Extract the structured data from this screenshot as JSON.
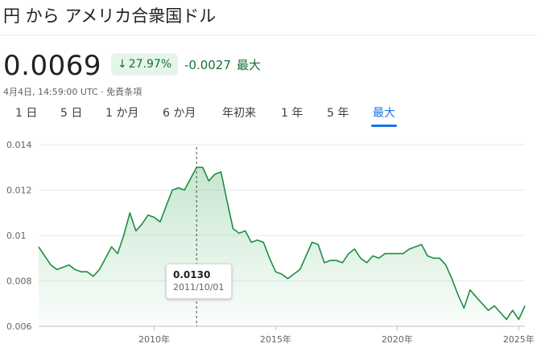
{
  "header": {
    "title": "円 から アメリカ合衆国ドル",
    "price": "0.0069",
    "change_percent": "27.97%",
    "change_arrow_icon": "arrow-down-icon",
    "change_value": "-0.0027",
    "change_period": "最大",
    "timestamp": "4月4日, 14:59:00 UTC · 免責条項"
  },
  "tabs": [
    {
      "label": "1 日"
    },
    {
      "label": "5 日"
    },
    {
      "label": "1 か月"
    },
    {
      "label": "6 か月"
    },
    {
      "label": "年初来"
    },
    {
      "label": "1 年"
    },
    {
      "label": "5 年"
    },
    {
      "label": "最大"
    }
  ],
  "active_tab": "最大",
  "colors": {
    "line": "#1e8e3e",
    "fill_top": "#34a853",
    "accent": "#1a73e8",
    "positive": "#137333"
  },
  "tooltip": {
    "value": "0.0130",
    "date": "2011/10/01"
  },
  "chart_data": {
    "type": "area",
    "title": "",
    "xlabel": "",
    "ylabel": "",
    "ylim": [
      0.006,
      0.014
    ],
    "xlim": [
      "2005-04-01",
      "2025-04-04"
    ],
    "y_ticks": [
      "0.014",
      "0.012",
      "0.01",
      "0.008",
      "0.006"
    ],
    "x_ticks": [
      {
        "value": "2010-01-01",
        "label": "2010年"
      },
      {
        "value": "2015-01-01",
        "label": "2015年"
      },
      {
        "value": "2020-01-01",
        "label": "2020年"
      },
      {
        "value": "2025-01-01",
        "label": "2025年"
      }
    ],
    "grid": true,
    "series": [
      {
        "x": [
          "2005-04-01",
          "2005-07-01",
          "2005-10-01",
          "2006-01-01",
          "2006-04-01",
          "2006-07-01",
          "2006-10-01",
          "2007-01-01",
          "2007-04-01",
          "2007-07-01",
          "2007-10-01",
          "2008-01-01",
          "2008-04-01",
          "2008-07-01",
          "2008-10-01",
          "2009-01-01",
          "2009-04-01",
          "2009-07-01",
          "2009-10-01",
          "2010-01-01",
          "2010-04-01",
          "2010-07-01",
          "2010-10-01",
          "2011-01-01",
          "2011-04-01",
          "2011-07-01",
          "2011-10-01",
          "2012-01-01",
          "2012-04-01",
          "2012-07-01",
          "2012-10-01",
          "2013-01-01",
          "2013-04-01",
          "2013-07-01",
          "2013-10-01",
          "2014-01-01",
          "2014-04-01",
          "2014-07-01",
          "2014-10-01",
          "2015-01-01",
          "2015-04-01",
          "2015-07-01",
          "2015-10-01",
          "2016-01-01",
          "2016-04-01",
          "2016-07-01",
          "2016-10-01",
          "2017-01-01",
          "2017-04-01",
          "2017-07-01",
          "2017-10-01",
          "2018-01-01",
          "2018-04-01",
          "2018-07-01",
          "2018-10-01",
          "2019-01-01",
          "2019-04-01",
          "2019-07-01",
          "2019-10-01",
          "2020-01-01",
          "2020-04-01",
          "2020-07-01",
          "2020-10-01",
          "2021-01-01",
          "2021-04-01",
          "2021-07-01",
          "2021-10-01",
          "2022-01-01",
          "2022-04-01",
          "2022-07-01",
          "2022-10-01",
          "2023-01-01",
          "2023-04-01",
          "2023-07-01",
          "2023-10-01",
          "2024-01-01",
          "2024-04-01",
          "2024-07-01",
          "2024-10-01",
          "2025-01-01",
          "2025-04-04"
        ],
        "y": [
          0.0095,
          0.0091,
          0.0087,
          0.0085,
          0.0086,
          0.0087,
          0.0085,
          0.0084,
          0.0084,
          0.0082,
          0.0085,
          0.009,
          0.0095,
          0.0092,
          0.01,
          0.011,
          0.0102,
          0.0105,
          0.0109,
          0.0108,
          0.0106,
          0.0113,
          0.012,
          0.0121,
          0.012,
          0.0125,
          0.013,
          0.013,
          0.0124,
          0.0127,
          0.0128,
          0.0115,
          0.0103,
          0.0101,
          0.0102,
          0.0097,
          0.0098,
          0.0097,
          0.009,
          0.0084,
          0.0083,
          0.0081,
          0.0083,
          0.0085,
          0.0091,
          0.0097,
          0.0096,
          0.0088,
          0.0089,
          0.0089,
          0.0088,
          0.0092,
          0.0094,
          0.009,
          0.0088,
          0.0091,
          0.009,
          0.0092,
          0.0092,
          0.0092,
          0.0092,
          0.0094,
          0.0095,
          0.0096,
          0.0091,
          0.009,
          0.009,
          0.0087,
          0.0081,
          0.0074,
          0.0068,
          0.0076,
          0.0073,
          0.007,
          0.0067,
          0.0069,
          0.0066,
          0.0063,
          0.0067,
          0.0063,
          0.0069
        ]
      }
    ]
  }
}
